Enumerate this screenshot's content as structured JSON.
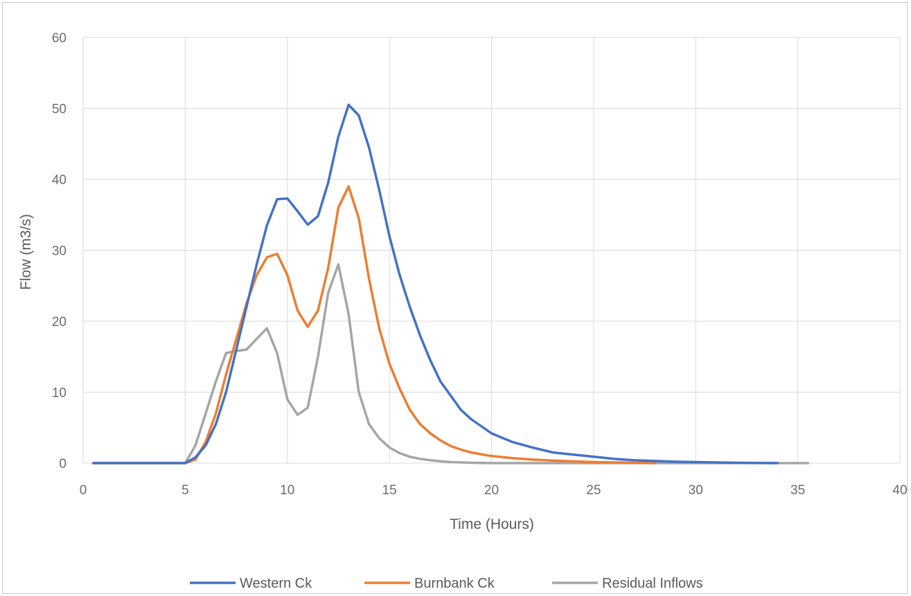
{
  "chart_data": {
    "type": "line",
    "xlabel": "Time (Hours)",
    "ylabel": "Flow (m3/s)",
    "xlim": [
      0,
      40
    ],
    "ylim": [
      0,
      60
    ],
    "x_ticks": [
      0,
      5,
      10,
      15,
      20,
      25,
      30,
      35,
      40
    ],
    "y_ticks": [
      0,
      10,
      20,
      30,
      40,
      50,
      60
    ],
    "grid": true,
    "legend_position": "bottom",
    "series": [
      {
        "name": "Western Ck",
        "color": "#4472c4",
        "x": [
          0.5,
          5,
          5.5,
          6,
          6.5,
          7,
          7.5,
          8,
          8.5,
          9,
          9.5,
          10,
          10.5,
          11,
          11.5,
          12,
          12.5,
          13,
          13.5,
          14,
          14.5,
          15,
          15.5,
          16,
          16.5,
          17,
          17.5,
          18,
          18.5,
          19,
          20,
          21,
          22,
          23,
          24,
          25,
          26,
          27,
          28,
          29,
          30,
          31,
          32,
          33,
          34
        ],
        "y": [
          0,
          0,
          0.8,
          2.5,
          5.5,
          10,
          16,
          22,
          28,
          33.5,
          37.2,
          37.3,
          35.5,
          33.6,
          34.8,
          39.5,
          46,
          50.5,
          49,
          44.5,
          38.5,
          32,
          26.5,
          22,
          18,
          14.5,
          11.5,
          9.5,
          7.5,
          6.2,
          4.2,
          3.0,
          2.2,
          1.5,
          1.2,
          0.9,
          0.6,
          0.4,
          0.3,
          0.2,
          0.15,
          0.1,
          0.05,
          0.02,
          0
        ]
      },
      {
        "name": "Burnbank Ck",
        "color": "#ed7d31",
        "x": [
          0.5,
          5,
          5.5,
          6,
          6.5,
          7,
          7.5,
          8,
          8.5,
          9,
          9.5,
          10,
          10.5,
          11,
          11.5,
          12,
          12.5,
          13,
          13.5,
          14,
          14.5,
          15,
          15.5,
          16,
          16.5,
          17,
          17.5,
          18,
          18.5,
          19,
          20,
          21,
          22,
          23,
          24,
          25,
          26,
          27,
          28
        ],
        "y": [
          0,
          0,
          0.5,
          3,
          7,
          12.5,
          17.5,
          22.5,
          26.5,
          29,
          29.5,
          26.5,
          21.5,
          19.2,
          21.5,
          27.5,
          36,
          39,
          34.5,
          26,
          19,
          14,
          10.5,
          7.5,
          5.5,
          4.2,
          3.2,
          2.4,
          1.9,
          1.5,
          1.0,
          0.7,
          0.5,
          0.35,
          0.25,
          0.15,
          0.1,
          0.05,
          0
        ]
      },
      {
        "name": "Residual Inflows",
        "color": "#a5a5a5",
        "x": [
          0.5,
          5,
          5.5,
          6,
          6.5,
          7,
          7.5,
          8,
          8.5,
          9,
          9.5,
          10,
          10.5,
          11,
          11.5,
          12,
          12.5,
          13,
          13.5,
          14,
          14.5,
          15,
          15.5,
          16,
          16.5,
          17,
          17.5,
          18,
          19,
          20,
          25,
          30,
          35.5
        ],
        "y": [
          0,
          0,
          2.5,
          7,
          11.5,
          15.5,
          15.8,
          16,
          17.5,
          19,
          15.5,
          9,
          6.8,
          7.8,
          15,
          24,
          28,
          21,
          10,
          5.5,
          3.5,
          2.2,
          1.4,
          0.9,
          0.6,
          0.4,
          0.25,
          0.15,
          0.05,
          0,
          0,
          0,
          0
        ]
      }
    ]
  }
}
